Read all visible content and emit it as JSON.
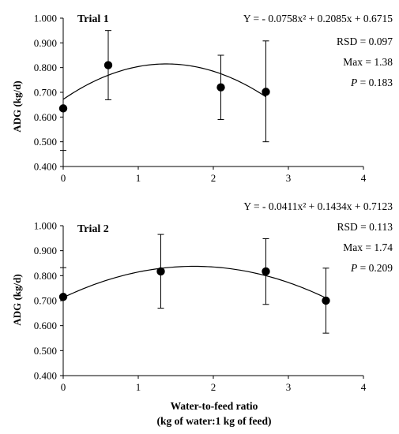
{
  "chart_data": [
    {
      "type": "scatter",
      "title": "Trial 1",
      "ylabel": "ADG (kg/d)",
      "xlabel": "",
      "xlim": [
        0,
        4
      ],
      "ylim": [
        0.4,
        1.0
      ],
      "x_ticks": [
        "0",
        "1",
        "2",
        "3",
        "4"
      ],
      "y_ticks": [
        "0.400",
        "0.500",
        "0.600",
        "0.700",
        "0.800",
        "0.900",
        "1.000"
      ],
      "points": [
        {
          "x": 0.0,
          "y": 0.635,
          "err_low": 0.465,
          "err_high": 0.635
        },
        {
          "x": 0.6,
          "y": 0.81,
          "err_low": 0.67,
          "err_high": 0.95
        },
        {
          "x": 2.1,
          "y": 0.72,
          "err_low": 0.59,
          "err_high": 0.85
        },
        {
          "x": 2.7,
          "y": 0.702,
          "err_low": 0.5,
          "err_high": 0.908
        }
      ],
      "fit": {
        "a": -0.0758,
        "b": 0.2085,
        "c": 0.6715,
        "x_start": 0.0,
        "x_end": 2.7
      },
      "annotations": {
        "equation": "Y = - 0.0758x² + 0.2085x + 0.6715",
        "rsd": "RSD = 0.097",
        "max": "Max = 1.38",
        "p_label": "P",
        "p_value": " = 0.183"
      }
    },
    {
      "type": "scatter",
      "title": "Trial 2",
      "ylabel": "ADG (kg/d)",
      "xlabel": "Water-to-feed ratio",
      "xlabel2": "(kg of water:1 kg of feed)",
      "xlim": [
        0,
        4
      ],
      "ylim": [
        0.4,
        1.0
      ],
      "x_ticks": [
        "0",
        "1",
        "2",
        "3",
        "4"
      ],
      "y_ticks": [
        "0.400",
        "0.500",
        "0.600",
        "0.700",
        "0.800",
        "0.900",
        "1.000"
      ],
      "points": [
        {
          "x": 0.0,
          "y": 0.715,
          "err_low": 0.715,
          "err_high": 0.832
        },
        {
          "x": 1.3,
          "y": 0.817,
          "err_low": 0.67,
          "err_high": 0.965
        },
        {
          "x": 2.7,
          "y": 0.817,
          "err_low": 0.685,
          "err_high": 0.948
        },
        {
          "x": 3.5,
          "y": 0.7,
          "err_low": 0.57,
          "err_high": 0.83
        }
      ],
      "fit": {
        "a": -0.0411,
        "b": 0.1434,
        "c": 0.7123,
        "x_start": 0.0,
        "x_end": 3.5
      },
      "annotations": {
        "equation": "Y = - 0.0411x² + 0.1434x + 0.7123",
        "rsd": "RSD = 0.113",
        "max": "Max = 1.74",
        "p_label": "P",
        "p_value": " = 0.209"
      }
    }
  ]
}
